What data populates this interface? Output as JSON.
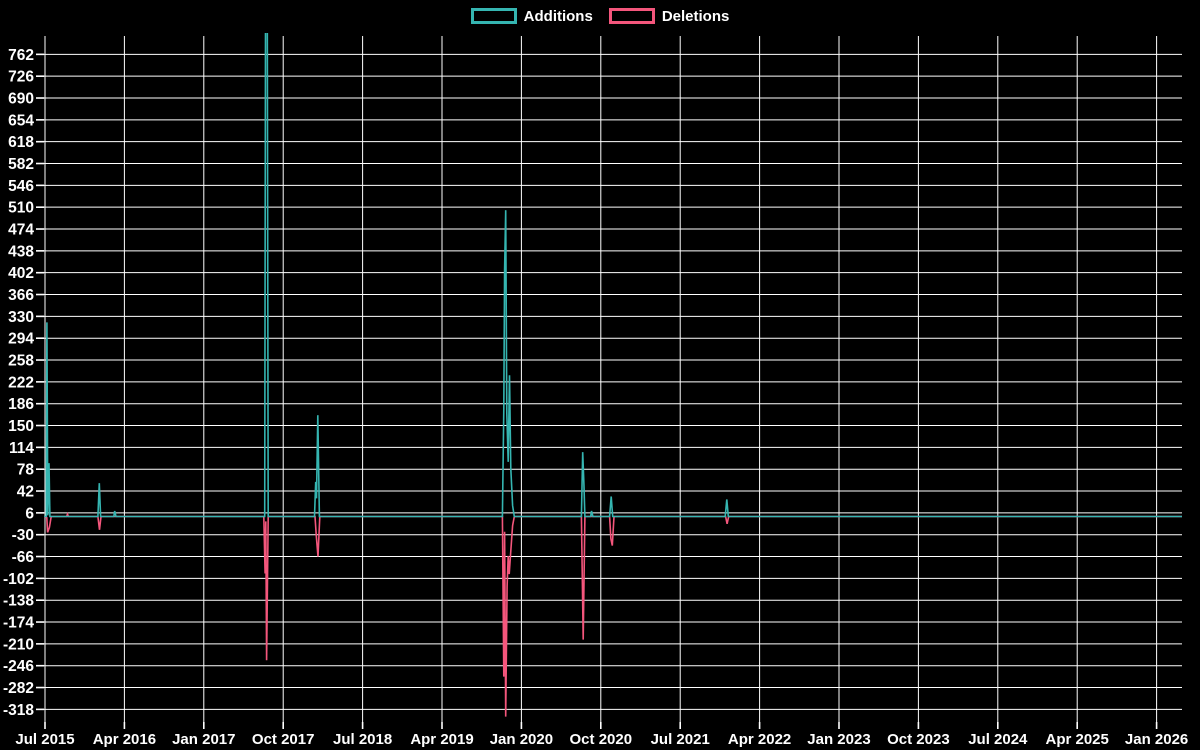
{
  "chart_data": {
    "type": "line",
    "title": "",
    "xlabel": "",
    "ylabel": "",
    "background_color": "#000000",
    "grid": true,
    "grid_color": "#ffffff",
    "text_color": "#ffffff",
    "legend_position": "top-center",
    "x_tick_labels": [
      "Jul 2015",
      "Apr 2016",
      "Jan 2017",
      "Oct 2017",
      "Jul 2018",
      "Apr 2019",
      "Jan 2020",
      "Oct 2020",
      "Jul 2021",
      "Apr 2022",
      "Jan 2023",
      "Oct 2023",
      "Jul 2024",
      "Apr 2025",
      "Jan 2026"
    ],
    "x_months_per_tick": 9,
    "y_ticks": [
      762,
      726,
      690,
      654,
      618,
      582,
      546,
      510,
      474,
      438,
      402,
      366,
      330,
      294,
      258,
      222,
      186,
      150,
      114,
      78,
      42,
      6,
      -30,
      -66,
      -102,
      -138,
      -174,
      -210,
      -246,
      -282,
      -318
    ],
    "ylim": [
      -334,
      800
    ],
    "series": [
      {
        "name": "Additions",
        "color": "#35b5b1",
        "points": [
          [
            -0.1,
            0
          ],
          [
            0.15,
            0
          ],
          [
            0.22,
            320
          ],
          [
            0.32,
            2
          ],
          [
            0.45,
            88
          ],
          [
            0.55,
            0
          ],
          [
            6.0,
            0
          ],
          [
            6.15,
            55
          ],
          [
            6.3,
            0
          ],
          [
            7.8,
            0
          ],
          [
            7.9,
            9
          ],
          [
            8.05,
            0
          ],
          [
            24.9,
            0
          ],
          [
            25.02,
            1000
          ],
          [
            25.18,
            1000
          ],
          [
            25.3,
            0
          ],
          [
            30.55,
            0
          ],
          [
            30.68,
            57
          ],
          [
            30.78,
            30
          ],
          [
            30.92,
            167
          ],
          [
            31.1,
            0
          ],
          [
            51.85,
            0
          ],
          [
            52.0,
            178
          ],
          [
            52.1,
            407
          ],
          [
            52.22,
            505
          ],
          [
            52.35,
            170
          ],
          [
            52.5,
            90
          ],
          [
            52.65,
            233
          ],
          [
            52.8,
            79
          ],
          [
            53.0,
            18
          ],
          [
            53.2,
            0
          ],
          [
            60.8,
            0
          ],
          [
            60.95,
            106
          ],
          [
            61.08,
            54
          ],
          [
            61.2,
            0
          ],
          [
            61.85,
            0
          ],
          [
            61.95,
            9
          ],
          [
            62.1,
            0
          ],
          [
            64.0,
            0
          ],
          [
            64.18,
            33
          ],
          [
            64.35,
            0
          ],
          [
            77.1,
            0
          ],
          [
            77.28,
            28
          ],
          [
            77.45,
            0
          ],
          [
            128.9,
            0
          ]
        ]
      },
      {
        "name": "Deletions",
        "color": "#f4567c",
        "points": [
          [
            -0.1,
            0
          ],
          [
            0.2,
            -2
          ],
          [
            0.3,
            -26
          ],
          [
            0.5,
            -18
          ],
          [
            0.7,
            0
          ],
          [
            2.45,
            0
          ],
          [
            2.55,
            4
          ],
          [
            2.65,
            0
          ],
          [
            6.0,
            0
          ],
          [
            6.18,
            -22
          ],
          [
            6.35,
            0
          ],
          [
            24.8,
            0
          ],
          [
            24.95,
            -94
          ],
          [
            25.03,
            -8
          ],
          [
            25.12,
            -237
          ],
          [
            25.3,
            0
          ],
          [
            30.6,
            0
          ],
          [
            30.75,
            -32
          ],
          [
            30.95,
            -66
          ],
          [
            31.15,
            0
          ],
          [
            51.85,
            0
          ],
          [
            52.0,
            -264
          ],
          [
            52.1,
            -25
          ],
          [
            52.22,
            -330
          ],
          [
            52.38,
            -115
          ],
          [
            52.5,
            -65
          ],
          [
            52.62,
            -95
          ],
          [
            52.8,
            -57
          ],
          [
            53.0,
            -15
          ],
          [
            53.2,
            0
          ],
          [
            60.8,
            0
          ],
          [
            61.0,
            -203
          ],
          [
            61.2,
            0
          ],
          [
            64.0,
            0
          ],
          [
            64.15,
            -37
          ],
          [
            64.3,
            -48
          ],
          [
            64.5,
            0
          ],
          [
            77.15,
            0
          ],
          [
            77.32,
            -12
          ],
          [
            77.5,
            0
          ],
          [
            128.9,
            0
          ]
        ]
      }
    ]
  }
}
